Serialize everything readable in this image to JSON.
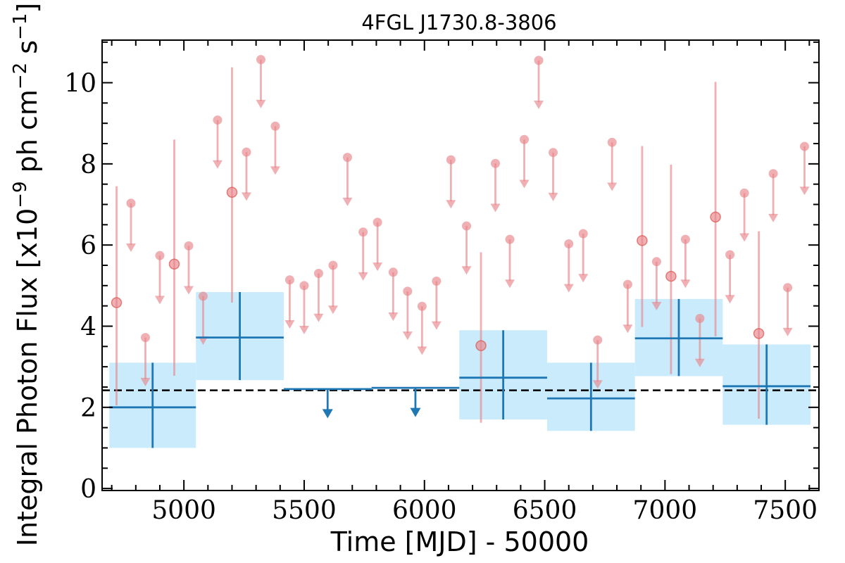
{
  "chart_data": {
    "type": "scatter",
    "title": "4FGL J1730.8-3806",
    "xlabel": "Time [MJD] - 50000",
    "ylabel": "Integral Photon Flux [x10^-9 ph cm^-2 s^-1]",
    "ylabel_parts": {
      "pre": "Integral Photon Flux [x10",
      "exp1": "−9",
      "mid": " ph cm",
      "exp2": "−2",
      "mid2": " s",
      "exp3": "−1",
      "post": "]"
    },
    "xlim": [
      4660,
      7640
    ],
    "ylim": [
      -0.05,
      11.05
    ],
    "xticks": [
      5000,
      5500,
      6000,
      6500,
      7000,
      7500
    ],
    "xtick_labels": [
      "5000",
      "5500",
      "6000",
      "6500",
      "7000",
      "7500"
    ],
    "yticks": [
      0,
      2,
      4,
      6,
      8,
      10
    ],
    "ytick_labels": [
      "0",
      "2",
      "4",
      "6",
      "8",
      "10"
    ],
    "grid": false,
    "mean_flux": 2.42,
    "colors": {
      "fine": "#e8868a",
      "coarse": "#1f77b4",
      "band": "#c9ebfb",
      "mean_line": "#000000"
    },
    "coarse_bins": [
      {
        "t0": 4690,
        "t1": 5050,
        "flux": 2.0,
        "err_lo": 1.0,
        "err_hi": 1.1,
        "upper_limit": false
      },
      {
        "t0": 5050,
        "t1": 5415,
        "flux": 3.72,
        "err_lo": 1.05,
        "err_hi": 1.12,
        "upper_limit": false
      },
      {
        "t0": 5415,
        "t1": 5780,
        "flux": 2.45,
        "upper_limit": true
      },
      {
        "t0": 5780,
        "t1": 6145,
        "flux": 2.48,
        "upper_limit": true
      },
      {
        "t0": 6145,
        "t1": 6510,
        "flux": 2.73,
        "err_lo": 1.03,
        "err_hi": 1.17,
        "upper_limit": false
      },
      {
        "t0": 6510,
        "t1": 6875,
        "flux": 2.22,
        "err_lo": 0.8,
        "err_hi": 0.88,
        "upper_limit": false
      },
      {
        "t0": 6875,
        "t1": 7240,
        "flux": 3.7,
        "err_lo": 0.93,
        "err_hi": 0.97,
        "upper_limit": false
      },
      {
        "t0": 7240,
        "t1": 7605,
        "flux": 2.52,
        "err_lo": 0.95,
        "err_hi": 1.03,
        "upper_limit": false
      }
    ],
    "fine_points": [
      {
        "t": 4720,
        "flux": 4.58,
        "lo": 2.05,
        "hi": 7.45,
        "upper_limit": false
      },
      {
        "t": 4780,
        "flux": 7.03,
        "upper_limit": true
      },
      {
        "t": 4840,
        "flux": 3.72,
        "upper_limit": true
      },
      {
        "t": 4900,
        "flux": 5.74,
        "upper_limit": true
      },
      {
        "t": 4960,
        "flux": 5.53,
        "lo": 2.78,
        "hi": 8.6,
        "upper_limit": false
      },
      {
        "t": 5020,
        "flux": 5.98,
        "upper_limit": true
      },
      {
        "t": 5080,
        "flux": 4.74,
        "upper_limit": true
      },
      {
        "t": 5140,
        "flux": 9.08,
        "upper_limit": true
      },
      {
        "t": 5200,
        "flux": 7.3,
        "lo": 4.58,
        "hi": 10.38,
        "upper_limit": false
      },
      {
        "t": 5260,
        "flux": 8.29,
        "upper_limit": true
      },
      {
        "t": 5320,
        "flux": 10.57,
        "upper_limit": true
      },
      {
        "t": 5380,
        "flux": 8.93,
        "upper_limit": true
      },
      {
        "t": 5440,
        "flux": 5.14,
        "upper_limit": true
      },
      {
        "t": 5500,
        "flux": 5.0,
        "upper_limit": true
      },
      {
        "t": 5560,
        "flux": 5.3,
        "upper_limit": true
      },
      {
        "t": 5620,
        "flux": 5.5,
        "upper_limit": true
      },
      {
        "t": 5680,
        "flux": 8.16,
        "upper_limit": true
      },
      {
        "t": 5745,
        "flux": 6.32,
        "upper_limit": true
      },
      {
        "t": 5805,
        "flux": 6.56,
        "upper_limit": true
      },
      {
        "t": 5870,
        "flux": 5.33,
        "upper_limit": true
      },
      {
        "t": 5930,
        "flux": 4.86,
        "upper_limit": true
      },
      {
        "t": 5990,
        "flux": 4.49,
        "upper_limit": true
      },
      {
        "t": 6050,
        "flux": 5.11,
        "upper_limit": true
      },
      {
        "t": 6110,
        "flux": 8.1,
        "upper_limit": true
      },
      {
        "t": 6175,
        "flux": 6.47,
        "upper_limit": true
      },
      {
        "t": 6235,
        "flux": 3.52,
        "lo": 1.62,
        "hi": 5.82,
        "upper_limit": false
      },
      {
        "t": 6295,
        "flux": 8.01,
        "upper_limit": true
      },
      {
        "t": 6355,
        "flux": 6.14,
        "upper_limit": true
      },
      {
        "t": 6415,
        "flux": 8.6,
        "upper_limit": true
      },
      {
        "t": 6475,
        "flux": 10.55,
        "upper_limit": true
      },
      {
        "t": 6535,
        "flux": 8.28,
        "upper_limit": true
      },
      {
        "t": 6600,
        "flux": 6.03,
        "upper_limit": true
      },
      {
        "t": 6660,
        "flux": 6.28,
        "upper_limit": true
      },
      {
        "t": 6720,
        "flux": 3.66,
        "upper_limit": true
      },
      {
        "t": 6780,
        "flux": 8.53,
        "upper_limit": true
      },
      {
        "t": 6845,
        "flux": 5.03,
        "upper_limit": true
      },
      {
        "t": 6905,
        "flux": 6.11,
        "lo": 3.98,
        "hi": 8.44,
        "upper_limit": false
      },
      {
        "t": 6965,
        "flux": 5.59,
        "upper_limit": true
      },
      {
        "t": 7025,
        "flux": 5.23,
        "lo": 2.82,
        "hi": 7.98,
        "upper_limit": false
      },
      {
        "t": 7085,
        "flux": 6.14,
        "upper_limit": true
      },
      {
        "t": 7145,
        "flux": 4.19,
        "upper_limit": true
      },
      {
        "t": 7210,
        "flux": 6.69,
        "lo": 3.75,
        "hi": 10.02,
        "upper_limit": false
      },
      {
        "t": 7270,
        "flux": 5.76,
        "upper_limit": true
      },
      {
        "t": 7330,
        "flux": 7.28,
        "upper_limit": true
      },
      {
        "t": 7390,
        "flux": 3.82,
        "lo": 1.72,
        "hi": 6.34,
        "upper_limit": false
      },
      {
        "t": 7450,
        "flux": 7.76,
        "upper_limit": true
      },
      {
        "t": 7510,
        "flux": 4.95,
        "upper_limit": true
      },
      {
        "t": 7580,
        "flux": 8.43,
        "upper_limit": true
      }
    ]
  }
}
